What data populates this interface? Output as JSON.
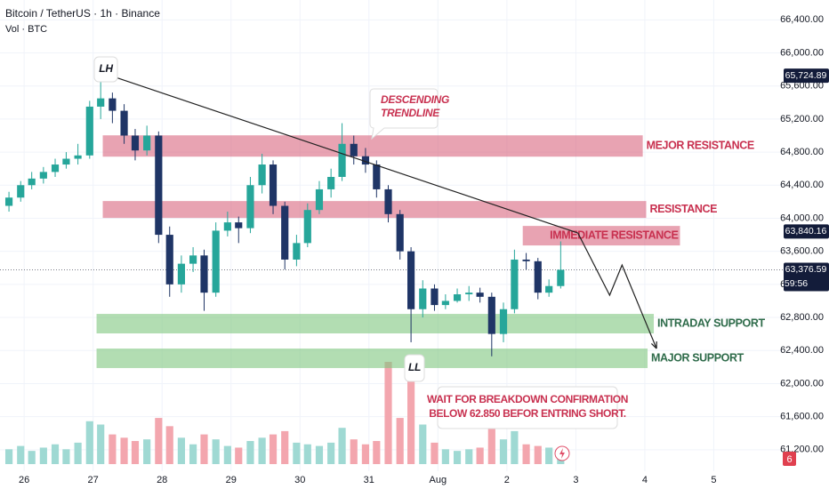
{
  "chart_data": {
    "type": "candlestick",
    "header": {
      "symbol": "Bitcoin / TetherUS · 1h · Binance",
      "volume_label": "Vol · BTC"
    },
    "x": [
      -0.22,
      -0.05,
      0.11,
      0.28,
      0.45,
      0.61,
      0.78,
      0.95,
      1.11,
      1.28,
      1.45,
      1.61,
      1.78,
      1.95,
      2.11,
      2.28,
      2.45,
      2.61,
      2.78,
      2.95,
      3.11,
      3.28,
      3.45,
      3.61,
      3.78,
      3.95,
      4.11,
      4.28,
      4.45,
      4.61,
      4.78,
      4.95,
      5.11,
      5.28,
      5.45,
      5.61,
      5.78,
      5.95,
      6.11,
      6.28,
      6.45,
      6.61,
      6.78,
      6.95,
      7.11,
      7.28,
      7.45,
      7.61,
      7.78
    ],
    "open": [
      64150,
      64250,
      64400,
      64480,
      64560,
      64650,
      64720,
      64760,
      65350,
      65450,
      65300,
      65000,
      64820,
      65000,
      63800,
      63200,
      63450,
      63550,
      63100,
      63850,
      63950,
      63880,
      64400,
      64650,
      64150,
      63500,
      63700,
      64100,
      64350,
      64500,
      64900,
      64750,
      64650,
      64350,
      64050,
      63600,
      62900,
      63150,
      62950,
      63000,
      63080,
      63100,
      63050,
      62600,
      62900,
      63500,
      63480,
      63100,
      63180
    ],
    "high": [
      64320,
      64450,
      64560,
      64620,
      64720,
      64800,
      64900,
      65420,
      65720,
      65520,
      65380,
      65080,
      65120,
      65050,
      63900,
      63550,
      63650,
      63620,
      63950,
      64080,
      64020,
      64500,
      64780,
      64700,
      64200,
      63800,
      64180,
      64450,
      64600,
      65150,
      65000,
      64850,
      64700,
      64400,
      64100,
      63650,
      63250,
      63200,
      63080,
      63150,
      63180,
      63160,
      63100,
      62980,
      63620,
      63580,
      63520,
      63260,
      63720
    ],
    "low": [
      64080,
      64200,
      64350,
      64420,
      64500,
      64600,
      64650,
      64720,
      65200,
      65150,
      64900,
      64700,
      64760,
      63700,
      63050,
      63100,
      63350,
      62880,
      63050,
      63780,
      63700,
      63820,
      64300,
      64050,
      63380,
      63420,
      63650,
      64050,
      64250,
      64450,
      64650,
      64550,
      64250,
      63950,
      63500,
      62500,
      62800,
      62880,
      62900,
      62980,
      63000,
      62980,
      62330,
      62500,
      62850,
      63380,
      63020,
      63050,
      63150
    ],
    "close": [
      64250,
      64400,
      64480,
      64560,
      64650,
      64720,
      64760,
      65350,
      65450,
      65300,
      65000,
      64820,
      65000,
      63800,
      63200,
      63450,
      63550,
      63100,
      63850,
      63950,
      63880,
      64400,
      64650,
      64150,
      63500,
      63700,
      64100,
      64350,
      64500,
      64900,
      64750,
      64650,
      64350,
      64050,
      63600,
      62900,
      63150,
      62950,
      63000,
      63080,
      63100,
      63050,
      62600,
      62900,
      63500,
      63480,
      63100,
      63180,
      63376.59
    ],
    "volume": [
      900,
      1100,
      800,
      1000,
      1200,
      900,
      1300,
      2600,
      2400,
      1800,
      1600,
      1400,
      1500,
      2800,
      2300,
      1600,
      1200,
      1800,
      1500,
      1100,
      1000,
      1400,
      1600,
      1800,
      2000,
      1300,
      1200,
      1100,
      1300,
      2200,
      1500,
      1200,
      1400,
      6200,
      2800,
      6000,
      2400,
      1300,
      900,
      800,
      900,
      1000,
      2500,
      1500,
      2000,
      1200,
      1100,
      1000,
      700
    ],
    "up_color": "#26a69a",
    "down_color": "#1f3566",
    "xlim": [
      -0.35,
      11.0
    ],
    "xticks": [
      {
        "value": 0,
        "label": "26"
      },
      {
        "value": 1,
        "label": "27"
      },
      {
        "value": 2,
        "label": "28"
      },
      {
        "value": 3,
        "label": "29"
      },
      {
        "value": 4,
        "label": "30"
      },
      {
        "value": 5,
        "label": "31"
      },
      {
        "value": 6,
        "label": "Aug"
      },
      {
        "value": 7,
        "label": "2"
      },
      {
        "value": 8,
        "label": "3"
      },
      {
        "value": 9,
        "label": "4"
      },
      {
        "value": 10,
        "label": "5"
      }
    ],
    "ylim": [
      60940,
      66640
    ],
    "yticks": [
      {
        "value": 61200,
        "label": "61,200.00"
      },
      {
        "value": 61600,
        "label": "61,600.00"
      },
      {
        "value": 62000,
        "label": "62,000.00"
      },
      {
        "value": 62400,
        "label": "62,400.00"
      },
      {
        "value": 62800,
        "label": "62,800.00"
      },
      {
        "value": 63200,
        "label": "63,200.00"
      },
      {
        "value": 63600,
        "label": "63,600.00"
      },
      {
        "value": 64000,
        "label": "64,000.00"
      },
      {
        "value": 64400,
        "label": "64,400.00"
      },
      {
        "value": 64800,
        "label": "64,800.00"
      },
      {
        "value": 65200,
        "label": "65,200.00"
      },
      {
        "value": 65600,
        "label": "65,600.00"
      },
      {
        "value": 66000,
        "label": "66,000.00"
      },
      {
        "value": 66400,
        "label": "66,400.00"
      }
    ],
    "price_tags": [
      {
        "value": 65724.89,
        "label": "65,724.89"
      },
      {
        "value": 63840.16,
        "label": "63,840.16"
      },
      {
        "value": 63376.59,
        "label": "63,376.59"
      }
    ],
    "countdown": "59:56",
    "alerts": 6,
    "zones": [
      {
        "label": "MEJOR RESISTANCE",
        "x": [
          1.14,
          8.97
        ],
        "y": [
          64745,
          65003
        ],
        "color": "#d9667f"
      },
      {
        "label": "RESISTANCE",
        "x": [
          1.14,
          9.02
        ],
        "y": [
          64004,
          64208
        ],
        "color": "#d9667f"
      },
      {
        "label": "IMMEDIATE RESISTANCE",
        "x": [
          7.23,
          9.51
        ],
        "y": [
          63671,
          63907
        ],
        "color": "#d9667f"
      },
      {
        "label": "INTRADAY SUPPORT",
        "x": [
          1.05,
          9.13
        ],
        "y": [
          62607,
          62843
        ],
        "color": "#7fc77f"
      },
      {
        "label": "MAJOR SUPPORT",
        "x": [
          1.05,
          9.04
        ],
        "y": [
          62188,
          62424
        ],
        "color": "#7fc77f"
      }
    ],
    "trendline": {
      "x": [
        1.26,
        8.03
      ],
      "y": [
        65723,
        63821
      ]
    },
    "projection": {
      "x": [
        8.03,
        8.49,
        8.67,
        9.17
      ],
      "y": [
        63821,
        63069,
        63434,
        62424
      ]
    },
    "callouts": {
      "lh": "LH",
      "ll": "LL",
      "trendline": [
        "DESCENDING",
        "TRENDLINE"
      ],
      "note": [
        "WAIT FOR BREAKDOWN CONFIRMATION",
        "BELOW 62.850 BEFOR ENTRING SHORT."
      ]
    }
  }
}
